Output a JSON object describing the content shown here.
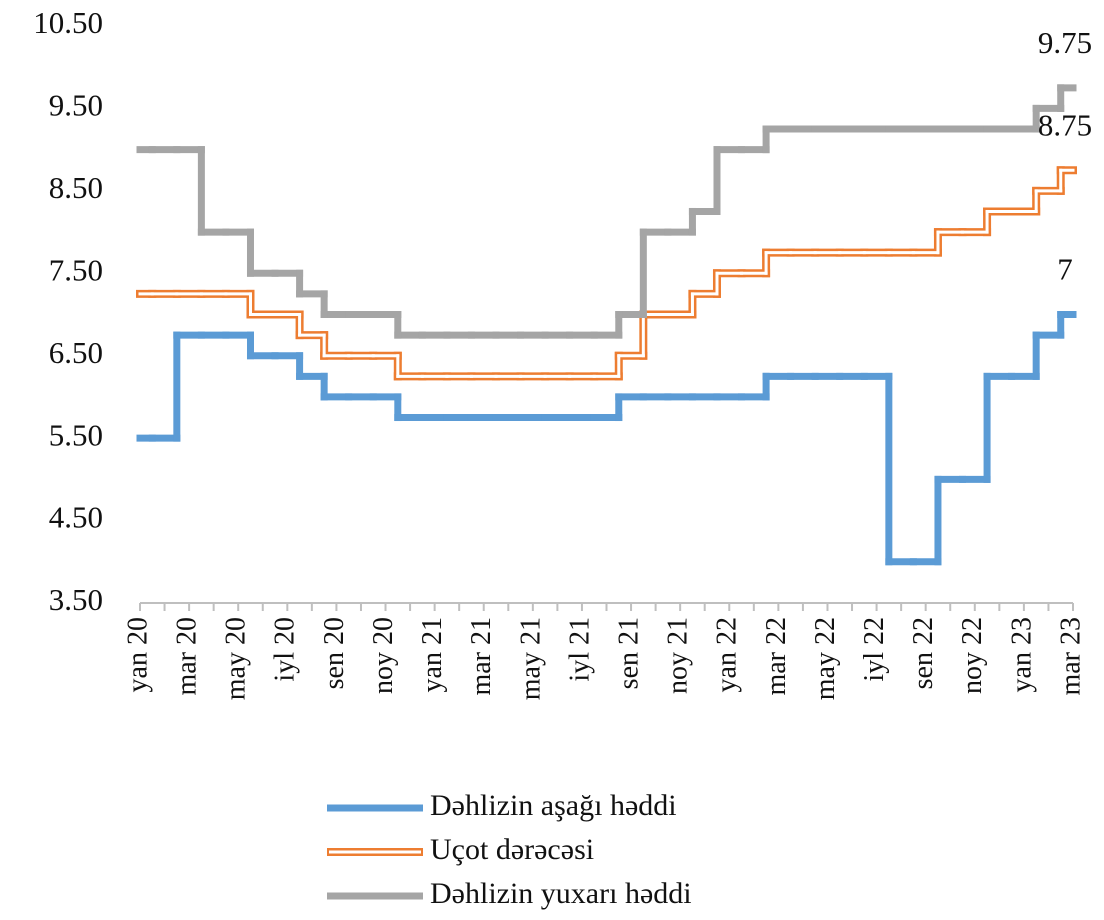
{
  "chart_data": {
    "type": "step",
    "categories": [
      "yan 20",
      null,
      "mar 20",
      null,
      "may 20",
      null,
      "iyl 20",
      null,
      "sen 20",
      null,
      "noy 20",
      null,
      "yan 21",
      null,
      "mar 21",
      null,
      "may 21",
      null,
      "iyl 21",
      null,
      "sen 21",
      null,
      "noy 21",
      null,
      "yan 22",
      null,
      "mar 22",
      null,
      "may 22",
      null,
      "iyl 22",
      null,
      "sen 22",
      null,
      "noy 22",
      null,
      "yan 23",
      null,
      "mar 23"
    ],
    "series": [
      {
        "name": "Dəhlizin aşağı həddi",
        "color": "#5b9bd5",
        "style": "solid",
        "label_last": true,
        "values": [
          5.5,
          5.5,
          6.75,
          6.75,
          6.75,
          6.5,
          6.5,
          6.25,
          6.0,
          6.0,
          6.0,
          5.75,
          5.75,
          5.75,
          5.75,
          5.75,
          5.75,
          5.75,
          5.75,
          5.75,
          6.0,
          6.0,
          6.0,
          6.0,
          6.0,
          6.0,
          6.25,
          6.25,
          6.25,
          6.25,
          6.25,
          4.0,
          4.0,
          5.0,
          5.0,
          6.25,
          6.25,
          6.75,
          7
        ]
      },
      {
        "name": "Uçot dərəcəsi",
        "color": "#ed7d31",
        "style": "double",
        "label_last": true,
        "values": [
          7.25,
          7.25,
          7.25,
          7.25,
          7.25,
          7.0,
          7.0,
          6.75,
          6.5,
          6.5,
          6.5,
          6.25,
          6.25,
          6.25,
          6.25,
          6.25,
          6.25,
          6.25,
          6.25,
          6.25,
          6.5,
          7.0,
          7.0,
          7.25,
          7.5,
          7.5,
          7.75,
          7.75,
          7.75,
          7.75,
          7.75,
          7.75,
          7.75,
          8.0,
          8.0,
          8.25,
          8.25,
          8.5,
          8.75
        ]
      },
      {
        "name": "Dəhlizin yuxarı həddi",
        "color": "#a5a5a5",
        "style": "solid",
        "label_last": true,
        "values": [
          9.0,
          9.0,
          9.0,
          8.0,
          8.0,
          7.5,
          7.5,
          7.25,
          7.0,
          7.0,
          7.0,
          6.75,
          6.75,
          6.75,
          6.75,
          6.75,
          6.75,
          6.75,
          6.75,
          6.75,
          7.0,
          8.0,
          8.0,
          8.25,
          9.0,
          9.0,
          9.25,
          9.25,
          9.25,
          9.25,
          9.25,
          9.25,
          9.25,
          9.25,
          9.25,
          9.25,
          9.25,
          9.5,
          9.75
        ]
      }
    ],
    "ylim": [
      3.5,
      10.5
    ],
    "yticks": [
      {
        "value": 3.5,
        "label": "3.50"
      },
      {
        "value": 4.5,
        "label": "4.50"
      },
      {
        "value": 5.5,
        "label": "5.50"
      },
      {
        "value": 6.5,
        "label": "6.50"
      },
      {
        "value": 7.5,
        "label": "7.50"
      },
      {
        "value": 8.5,
        "label": "8.50"
      },
      {
        "value": 9.5,
        "label": "9.50"
      },
      {
        "value": 10.5,
        "label": "10.50"
      }
    ],
    "grid": false,
    "legend": "bottom"
  }
}
